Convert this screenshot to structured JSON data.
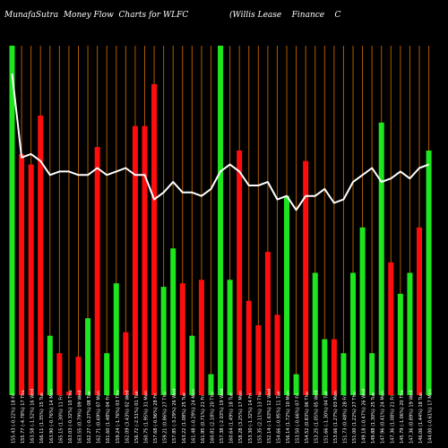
{
  "header": {
    "left": "MunafaSutra  Money Flow  Charts for WLFC",
    "right": "(Willis Lease    Finance    C"
  },
  "colors": {
    "background": "#000000",
    "up": "#1ee61e",
    "down": "#ff0d0d",
    "grid": "#b05a00",
    "line": "#ffffff",
    "text": "#ffffff"
  },
  "chart_data": {
    "type": "bar",
    "ylim": [
      0,
      100
    ],
    "grid": true,
    "categories": [
      "155.43 (-0.22%) 18 Fri",
      "155.77 (-4.78%) 17 Thu",
      "163.58 (-1.52%) 16 Wed",
      "166.11 (1.35%) 15 Tue",
      "163.90 (-0.76%) 14 Mon",
      "165.15 (1.30%) 11 Fri",
      "163.03 (-0.32%) 10 Thu",
      "163.55 (0.79%) 09 Wed",
      "162.27 (-0.27%) 08 Tue",
      "162.71 (0.69%) 07 Mon",
      "161.60 (1.48%) 04 Fri",
      "159.24 (-1.76%) 03 Thu",
      "162.09 (3.43%) 02 Wed",
      "156.72 (-2.51%) 01 Tue",
      "160.75 (1.95%) 31 Mon",
      "157.68 (-0.96%) 28 Fri",
      "159.21 (0.86%) 27 Thu",
      "157.85 (-3.29%) 26 Wed",
      "163.22 (1.08%) 25 Tue",
      "161.48 (-0.29%) 24 Mon",
      "161.95 (0.71%) 21 Fri",
      "160.81 (2.18%) 20 Thu",
      "157.38 (-2.03%) 19 Wed",
      "160.64 (1.49%) 18 Tue",
      "158.28 (3.25%) 17 Mon",
      "153.30 (-1.32%) 14 Fri",
      "155.35 (2.11%) 13 Thu",
      "152.14 (-1.63%) 12 Wed",
      "154.66 (-0.95%) 11 Tue",
      "156.14 (1.72%) 10 Mon",
      "153.50 (-0.66%) 07 Fri",
      "154.52 (0.83%) 06 Thu",
      "153.25 (1.05%) 05 Wed",
      "151.66 (-1.30%) 04 Tue",
      "153.66 (1.27%) 03 Mon",
      "151.73 (0.48%) 28 Fri",
      "151.00 (1.22%) 27 Thu",
      "149.18 (-0.47%) 26 Wed",
      "149.88 (1.30%) 25 Tue",
      "147.96 (0.41%) 24 Mon",
      "147.36 (1.08%) 21 Fri",
      "145.79 (-1.06%) 20 Thu",
      "147.36 (0.89%) 19 Wed",
      "146.06 (1.44%) 18 Tue",
      "144.00 (-0.61%) 17 Mon"
    ],
    "series": [
      {
        "values": [
          100,
          69,
          66,
          80,
          17,
          12,
          1,
          11,
          22,
          71,
          12,
          32,
          18,
          77,
          77,
          89,
          31,
          42,
          32,
          17,
          33,
          6,
          100,
          33,
          70,
          27,
          20,
          41,
          23,
          57,
          6,
          67,
          35,
          16,
          16,
          12,
          35,
          48,
          12,
          78,
          38,
          29,
          35,
          48,
          70
        ],
        "colors": [
          "up",
          "down",
          "down",
          "down",
          "up",
          "down",
          "down",
          "down",
          "up",
          "down",
          "up",
          "up",
          "down",
          "down",
          "down",
          "down",
          "up",
          "up",
          "down",
          "up",
          "down",
          "up",
          "up",
          "up",
          "down",
          "down",
          "down",
          "down",
          "down",
          "up",
          "up",
          "down",
          "up",
          "up",
          "down",
          "up",
          "up",
          "up",
          "up",
          "up",
          "down",
          "up",
          "up",
          "down",
          "up"
        ]
      },
      {
        "type": "line",
        "values": [
          92,
          68,
          69,
          67,
          63,
          64,
          64,
          63,
          63,
          65,
          63,
          64,
          65,
          63,
          63,
          56,
          58,
          61,
          58,
          58,
          57,
          59,
          64,
          66,
          64,
          60,
          60,
          61,
          56,
          57,
          53,
          57,
          57,
          59,
          55,
          56,
          61,
          63,
          65,
          61,
          62,
          64,
          62,
          65,
          66
        ]
      }
    ]
  }
}
